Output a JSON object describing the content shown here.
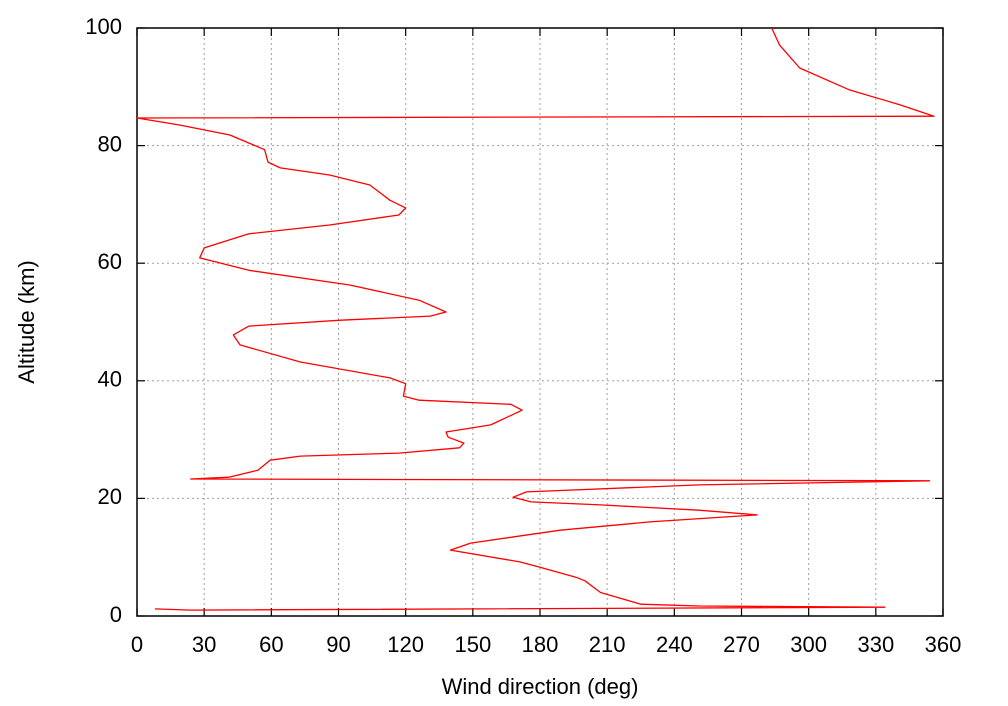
{
  "chart_data": {
    "type": "line",
    "xlabel": "Wind direction (deg)",
    "ylabel": "Altitude (km)",
    "xlim": [
      0,
      360
    ],
    "ylim": [
      0,
      100
    ],
    "xticks": [
      0,
      30,
      60,
      90,
      120,
      150,
      180,
      210,
      240,
      270,
      300,
      330,
      360
    ],
    "yticks": [
      0,
      20,
      40,
      60,
      80,
      100
    ],
    "grid": true,
    "x": [
      8,
      24,
      334,
      251,
      225,
      207,
      200,
      196,
      180,
      171,
      140,
      149,
      189,
      229,
      277,
      251,
      207,
      176,
      168,
      174,
      251,
      354,
      24,
      41,
      54,
      59.4,
      73,
      117,
      144,
      146,
      139,
      138,
      158,
      172,
      167,
      126,
      119,
      120,
      113,
      73,
      46,
      43,
      50,
      91,
      131,
      138,
      126,
      95,
      50,
      28,
      30,
      50,
      86,
      117,
      120,
      113,
      104,
      86,
      64,
      58.5,
      57,
      41.5,
      19,
      0,
      356,
      341,
      318,
      296,
      287,
      283.5
    ],
    "series": [
      {
        "color": "#ff0000",
        "values": [
          1.2,
          1.0,
          1.5,
          1.7,
          2,
          4,
          6,
          6.6,
          8.3,
          9.2,
          11.2,
          12.4,
          14.6,
          16,
          17.2,
          18,
          18.9,
          19.4,
          20.2,
          21.1,
          22.3,
          23,
          23.3,
          23.6,
          24.8,
          26.5,
          27.2,
          27.7,
          28.6,
          29.4,
          30.4,
          31.3,
          32.5,
          35,
          36,
          36.7,
          37.4,
          39.5,
          40.5,
          43.2,
          46.1,
          47.8,
          49.3,
          50.3,
          51,
          51.7,
          53.7,
          56.3,
          58.8,
          60.9,
          62.6,
          65,
          66.5,
          68.2,
          69.4,
          70.7,
          73.3,
          75,
          76.2,
          77.2,
          79.3,
          81.8,
          83.5,
          84.7,
          85.0,
          86.9,
          89.5,
          93.2,
          97.1,
          100
        ]
      }
    ]
  }
}
